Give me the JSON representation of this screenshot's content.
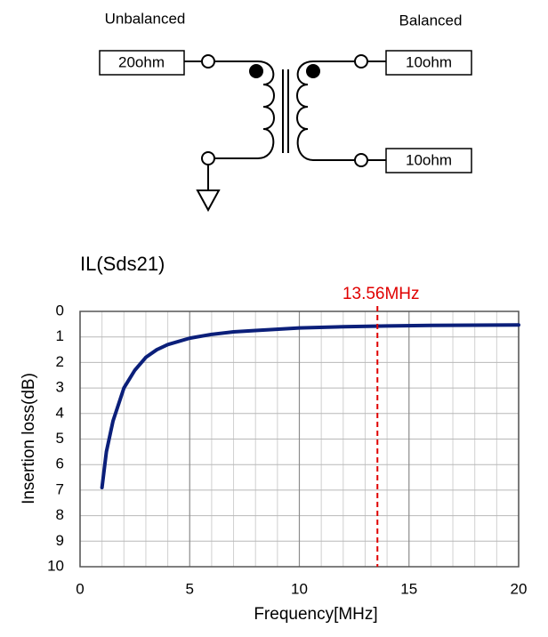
{
  "diagram": {
    "left_title": "Unbalanced",
    "right_title": "Balanced",
    "left_port": "20ohm",
    "right_ports": [
      "10ohm",
      "10ohm"
    ]
  },
  "chart_data": {
    "type": "line",
    "title": "IL(Sds21)",
    "x_label": "Frequency[MHz]",
    "y_label": "Insertion loss(dB)",
    "x": [
      1,
      1.2,
      1.5,
      2,
      2.5,
      3,
      3.5,
      4,
      5,
      6,
      7,
      8,
      10,
      12,
      14,
      16,
      20
    ],
    "series": [
      {
        "name": "IL(Sds21)",
        "color": "#0b1f7a",
        "values": [
          6.9,
          5.5,
          4.3,
          3.0,
          2.3,
          1.8,
          1.5,
          1.3,
          1.05,
          0.9,
          0.8,
          0.75,
          0.65,
          0.6,
          0.57,
          0.55,
          0.53
        ]
      }
    ],
    "xlim": [
      0,
      20
    ],
    "xticks": [
      0,
      5,
      10,
      15,
      20
    ],
    "xminorticks": [
      1,
      2,
      3,
      4,
      6,
      7,
      8,
      9,
      11,
      12,
      13,
      14,
      16,
      17,
      18,
      19
    ],
    "ylim": [
      10,
      0
    ],
    "yticks": [
      0,
      1,
      2,
      3,
      4,
      5,
      6,
      7,
      8,
      9,
      10
    ],
    "grid": true,
    "markers": [
      {
        "x": 13.56,
        "label": "13.56MHz",
        "color": "#e00000"
      }
    ]
  }
}
